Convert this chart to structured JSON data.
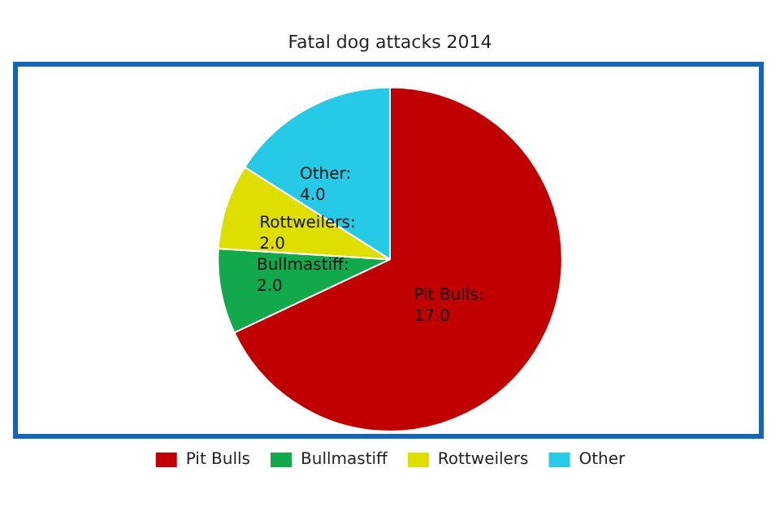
{
  "chart_data": {
    "type": "pie",
    "title": "Fatal dog attacks 2014",
    "categories": [
      "Pit Bulls",
      "Bullmastiff",
      "Rottweilers",
      "Other"
    ],
    "values": [
      17,
      2,
      2,
      4
    ],
    "value_labels": [
      "Pit Bulls:\n17.0",
      "Bullmastiff:\n2.0",
      "Rottweilers:\n2.0",
      "Other:\n4.0"
    ],
    "colors": [
      "#c00000",
      "#12a84c",
      "#dede00",
      "#26c9e6"
    ],
    "legend": "bottom"
  }
}
